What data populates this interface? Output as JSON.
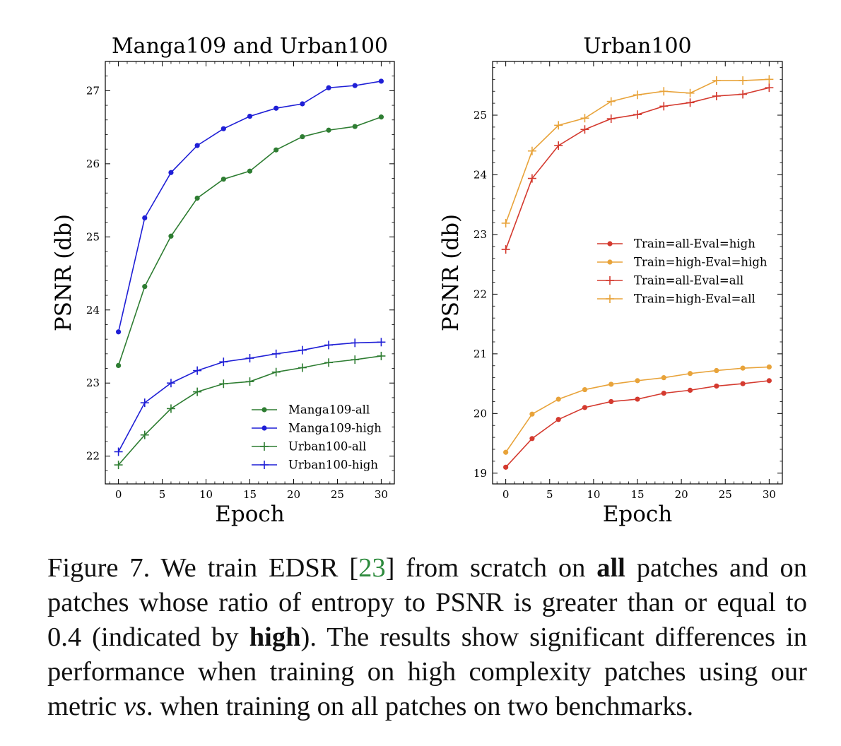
{
  "chart_data": [
    {
      "type": "line",
      "title": "Manga109 and Urban100",
      "xlabel": "Epoch",
      "ylabel": "PSNR (db)",
      "xlim": [
        -1.5,
        31.5
      ],
      "ylim": [
        21.62,
        27.4
      ],
      "xticks": [
        0,
        5,
        10,
        15,
        20,
        25,
        30
      ],
      "yticks": [
        22,
        23,
        24,
        25,
        26,
        27
      ],
      "legend_position": "lower-right",
      "x": [
        0,
        3,
        6,
        9,
        12,
        15,
        18,
        21,
        24,
        27,
        30
      ],
      "series": [
        {
          "name": "Manga109-all",
          "marker": "dot",
          "color": "#2e7d32",
          "values": [
            23.24,
            24.32,
            25.01,
            25.53,
            25.79,
            25.9,
            26.19,
            26.37,
            26.46,
            26.51,
            26.64
          ]
        },
        {
          "name": "Manga109-high",
          "marker": "dot",
          "color": "#1f1fd6",
          "values": [
            23.7,
            25.26,
            25.88,
            26.25,
            26.48,
            26.65,
            26.76,
            26.82,
            27.04,
            27.07,
            27.13
          ]
        },
        {
          "name": "Urban100-all",
          "marker": "plus",
          "color": "#2e7d32",
          "values": [
            21.88,
            22.29,
            22.65,
            22.88,
            22.99,
            23.02,
            23.15,
            23.21,
            23.28,
            23.32,
            23.37
          ]
        },
        {
          "name": "Urban100-high",
          "marker": "plus",
          "color": "#1f1fd6",
          "values": [
            22.06,
            22.73,
            23.0,
            23.17,
            23.29,
            23.34,
            23.4,
            23.45,
            23.52,
            23.55,
            23.56
          ]
        }
      ]
    },
    {
      "type": "line",
      "title": "Urban100",
      "xlabel": "Epoch",
      "ylabel": "PSNR (db)",
      "xlim": [
        -1.5,
        31.5
      ],
      "ylim": [
        18.82,
        25.9
      ],
      "xticks": [
        0,
        5,
        10,
        15,
        20,
        25,
        30
      ],
      "yticks": [
        19,
        20,
        21,
        22,
        23,
        24,
        25
      ],
      "legend_position": "center-right",
      "x": [
        0,
        3,
        6,
        9,
        12,
        15,
        18,
        21,
        24,
        27,
        30
      ],
      "series": [
        {
          "name": "Train=all-Eval=high",
          "marker": "dot",
          "color": "#d43a2f",
          "values": [
            19.1,
            19.58,
            19.9,
            20.1,
            20.2,
            20.24,
            20.34,
            20.39,
            20.46,
            20.5,
            20.55
          ]
        },
        {
          "name": "Train=high-Eval=high",
          "marker": "dot",
          "color": "#e8a33a",
          "values": [
            19.35,
            19.99,
            20.24,
            20.4,
            20.49,
            20.55,
            20.6,
            20.67,
            20.72,
            20.76,
            20.78
          ]
        },
        {
          "name": "Train=all-Eval=all",
          "marker": "plus",
          "color": "#d43a2f",
          "values": [
            22.75,
            23.94,
            24.49,
            24.76,
            24.94,
            25.01,
            25.15,
            25.21,
            25.32,
            25.35,
            25.46
          ]
        },
        {
          "name": "Train=high-Eval=all",
          "marker": "plus",
          "color": "#e8a33a",
          "values": [
            23.19,
            24.4,
            24.83,
            24.95,
            25.23,
            25.34,
            25.4,
            25.37,
            25.58,
            25.58,
            25.6
          ]
        }
      ]
    }
  ],
  "caption": {
    "p1": "Figure 7. We train EDSR [",
    "ref": "23",
    "p2": "] from scratch on ",
    "b1": "all",
    "p3": " patches and on patches whose ratio of entropy to PSNR is greater than or equal to 0.4 (indicated by ",
    "b2": "high",
    "p4": "). The results show significant differences in performance when training on high complexity patches using our metric ",
    "i1": "vs",
    "p5": ". when training on all patches on two benchmarks."
  }
}
